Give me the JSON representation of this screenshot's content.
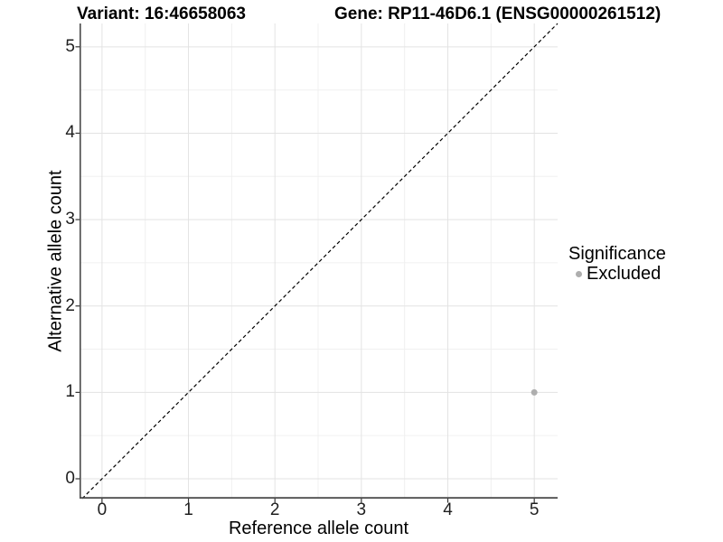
{
  "chart_data": {
    "type": "scatter",
    "titles": {
      "left": "Variant: 16:46658063",
      "right": "Gene: RP11-46D6.1 (ENSG00000261512)"
    },
    "xlabel": "Reference allele count",
    "ylabel": "Alternative allele count",
    "xlim": [
      -0.26,
      5.27
    ],
    "ylim": [
      -0.23,
      5.27
    ],
    "xticks": [
      0,
      1,
      2,
      3,
      4,
      5
    ],
    "yticks": [
      0,
      1,
      2,
      3,
      4,
      5
    ],
    "minor_ticks": [
      0.5,
      1.5,
      2.5,
      3.5,
      4.5
    ],
    "grid": {
      "major_color": "#e3e3e3",
      "minor_color": "#f0f0f0"
    },
    "identity_line": {
      "style": "dashed",
      "color": "#000000",
      "equation": "y = x"
    },
    "series": [
      {
        "name": "Excluded",
        "color": "#aeaeae",
        "points": [
          {
            "x": 5,
            "y": 1
          }
        ]
      }
    ],
    "legend": {
      "position": "right",
      "title": "Significance",
      "items": [
        {
          "label": "Excluded",
          "color": "#aeaeae"
        }
      ]
    },
    "colors": {
      "axis_line": "#4a4a4a",
      "tick_mark": "#333333",
      "text": "#000000"
    }
  }
}
